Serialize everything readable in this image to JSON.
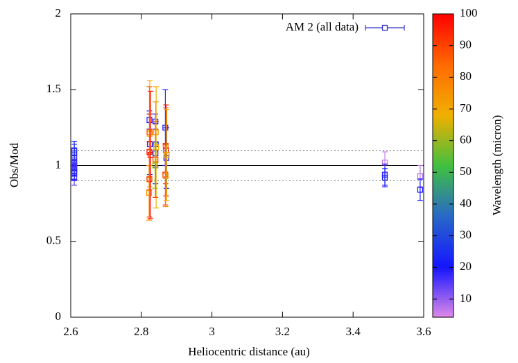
{
  "chart_data": {
    "type": "errorbar-scatter",
    "xlabel": "Heliocentric distance (au)",
    "ylabel": "Obs/Mod",
    "colorbar_label": "Wavelength (micron)",
    "xlim": [
      2.6,
      3.6
    ],
    "xticks": [
      2.6,
      2.8,
      3,
      3.2,
      3.4,
      3.6
    ],
    "ylim": [
      0,
      2
    ],
    "yticks": [
      0,
      0.5,
      1,
      1.5,
      2
    ],
    "clim": [
      4.3,
      100
    ],
    "cticks": [
      10,
      20,
      30,
      40,
      50,
      60,
      70,
      80,
      90,
      100
    ],
    "colormap": [
      "#e08ae8",
      "#1515ff",
      "#2868c8",
      "#40c040",
      "#f0b000",
      "#ff6a00",
      "#ff0000"
    ],
    "legend": "top right",
    "hlines": [
      {
        "value": 1,
        "style": "solid"
      },
      {
        "value": 1.1,
        "style": "dotted"
      },
      {
        "value": 0.9,
        "style": "dotted"
      }
    ],
    "series": [
      {
        "name": "AM 2 (all data)",
        "color": "#3333cc",
        "x": [
          2.61,
          2.61,
          2.61,
          2.61,
          2.61,
          2.61,
          2.61,
          2.61,
          2.61,
          2.61,
          2.823,
          2.824,
          2.823,
          2.824,
          2.823,
          2.822,
          2.826,
          2.823,
          2.84,
          2.841,
          2.84,
          2.842,
          2.84,
          2.841,
          2.839,
          2.868,
          2.869,
          2.87,
          2.871,
          2.868,
          2.869,
          2.872,
          3.49,
          3.49,
          3.49,
          3.59,
          3.59
        ],
        "values": [
          0.92,
          0.95,
          0.98,
          1.0,
          1.02,
          1.05,
          1.08,
          1.1,
          0.96,
          1.0,
          1.3,
          1.14,
          1.09,
          1.21,
          0.91,
          0.82,
          1.07,
          1.22,
          1.29,
          1.14,
          1.08,
          1.12,
          1.04,
          1.22,
          1.0,
          1.25,
          1.13,
          1.1,
          1.05,
          0.94,
          0.93,
          1.07,
          1.02,
          0.94,
          0.92,
          0.93,
          0.84
        ],
        "errors": [
          0.05,
          0.05,
          0.05,
          0.05,
          0.05,
          0.06,
          0.06,
          0.06,
          0.05,
          0.05,
          0.06,
          0.2,
          0.25,
          0.35,
          0.25,
          0.18,
          0.42,
          0.3,
          0.05,
          0.15,
          0.2,
          0.4,
          0.25,
          0.2,
          0.15,
          0.25,
          0.25,
          0.3,
          0.2,
          0.2,
          0.2,
          0.3,
          0.07,
          0.07,
          0.06,
          0.07,
          0.07
        ],
        "wavelength": [
          15,
          18,
          22,
          20,
          25,
          17,
          19,
          24,
          21,
          16,
          18,
          20,
          95,
          70,
          92,
          75,
          98,
          85,
          18,
          22,
          25,
          68,
          90,
          75,
          60,
          20,
          90,
          97,
          22,
          95,
          75,
          70,
          6,
          18,
          22,
          8,
          20
        ]
      }
    ]
  }
}
